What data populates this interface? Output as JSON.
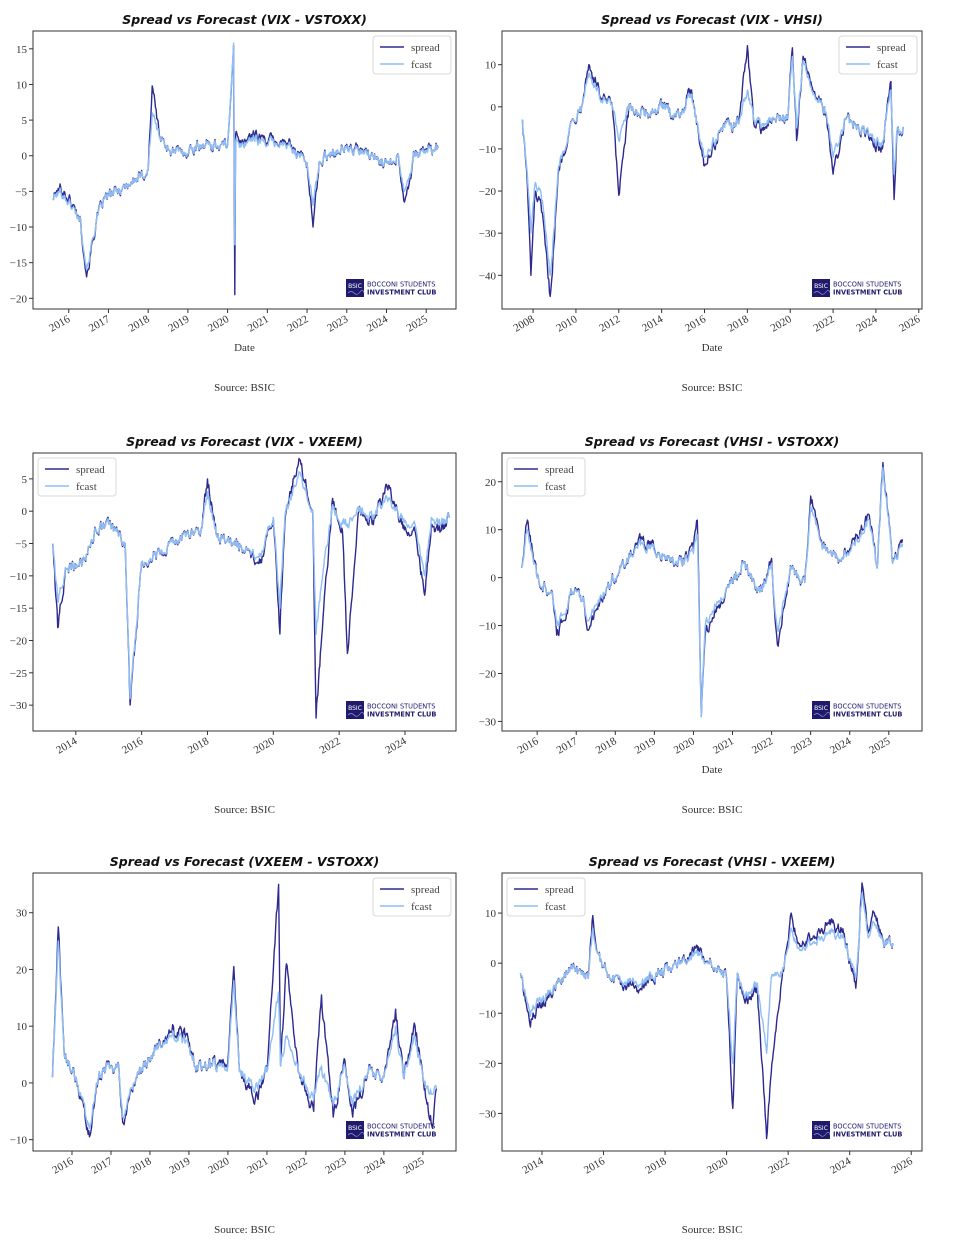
{
  "colors": {
    "spread": "#2e2a8f",
    "fcast": "#8fbef5",
    "frame": "#333333",
    "logo": "#1f1a6b"
  },
  "logo": {
    "badge": "BSIC",
    "line1": "BOCCONI STUDENTS",
    "line2": "INVESTMENT CLUB"
  },
  "chart_data": [
    {
      "type": "line",
      "title": "Spread vs Forecast (VIX - VSTOXX)",
      "xlabel": "Date",
      "ylabel": "",
      "source": "Source: BSIC",
      "legend": {
        "placement": "top-right",
        "entries": [
          "spread",
          "fcast"
        ]
      },
      "xlim": [
        2015.1,
        2025.75
      ],
      "ylim": [
        -21.5,
        17.5
      ],
      "xticks": [
        2016,
        2017,
        2018,
        2019,
        2020,
        2021,
        2022,
        2023,
        2024,
        2025
      ],
      "xtick_labels": [
        "2016",
        "2017",
        "2018",
        "2019",
        "2020",
        "2021",
        "2022",
        "2023",
        "2024",
        "2025"
      ],
      "yticks": [
        15,
        10,
        5,
        0,
        -5,
        -10,
        -15,
        -20
      ],
      "ytick_labels": [
        "15",
        "10",
        "5",
        "0",
        "−5",
        "−10",
        "−15",
        "−20"
      ],
      "x": [
        2015.6,
        2015.8,
        2016.0,
        2016.3,
        2016.45,
        2016.7,
        2016.9,
        2017.2,
        2017.5,
        2017.8,
        2018.0,
        2018.1,
        2018.3,
        2018.6,
        2018.9,
        2019.3,
        2019.6,
        2020.0,
        2020.15,
        2020.18,
        2020.2,
        2020.3,
        2020.6,
        2020.9,
        2021.2,
        2021.6,
        2022.0,
        2022.15,
        2022.3,
        2022.6,
        2022.9,
        2023.2,
        2023.6,
        2024.0,
        2024.3,
        2024.45,
        2024.7,
        2025.0,
        2025.3
      ],
      "series": [
        {
          "name": "spread",
          "values": [
            -6,
            -4.5,
            -6,
            -9,
            -17,
            -9,
            -6,
            -5,
            -4,
            -3,
            -2,
            9.8,
            2.5,
            0.5,
            0.5,
            1.5,
            1.5,
            1.5,
            15.5,
            -19.5,
            3,
            1.5,
            3,
            2.5,
            2,
            1.5,
            -1,
            -10,
            -1,
            0.5,
            1,
            1,
            0,
            -1,
            0,
            -6.5,
            0,
            1,
            1
          ]
        },
        {
          "name": "fcast",
          "values": [
            -6,
            -5,
            -6.5,
            -9,
            -16,
            -9,
            -6,
            -5,
            -4,
            -3,
            -2,
            6,
            2.5,
            0.5,
            0.5,
            1.5,
            1.5,
            1.5,
            15.8,
            -12.5,
            2,
            1.2,
            2.5,
            2,
            1.8,
            1.2,
            -1,
            -7,
            -1,
            0.5,
            1,
            0.8,
            0,
            -1,
            0,
            -5,
            0,
            0.8,
            1
          ]
        }
      ]
    },
    {
      "type": "line",
      "title": "Spread vs Forecast (VIX - VHSI)",
      "xlabel": "Date",
      "ylabel": "",
      "source": "Source: BSIC",
      "legend": {
        "placement": "top-right",
        "entries": [
          "spread",
          "fcast"
        ]
      },
      "xlim": [
        2006.55,
        2026.15
      ],
      "ylim": [
        -48,
        18
      ],
      "xticks": [
        2008,
        2010,
        2012,
        2014,
        2016,
        2018,
        2020,
        2022,
        2024,
        2026
      ],
      "xtick_labels": [
        "2008",
        "2010",
        "2012",
        "2014",
        "2016",
        "2018",
        "2020",
        "2022",
        "2024",
        "2026"
      ],
      "yticks": [
        10,
        0,
        -10,
        -20,
        -30,
        -40
      ],
      "ytick_labels": [
        "10",
        "0",
        "−10",
        "−20",
        "−30",
        "−40"
      ],
      "x": [
        2007.5,
        2007.7,
        2007.9,
        2008.1,
        2008.4,
        2008.8,
        2009.2,
        2009.7,
        2010.2,
        2010.6,
        2011.2,
        2011.7,
        2012.0,
        2012.5,
        2013.2,
        2014.0,
        2014.8,
        2015.4,
        2015.6,
        2016.0,
        2016.8,
        2017.6,
        2018.0,
        2018.3,
        2018.7,
        2019.3,
        2019.9,
        2020.1,
        2020.3,
        2020.6,
        2021.0,
        2021.6,
        2022.0,
        2022.6,
        2023.2,
        2023.8,
        2024.3,
        2024.7,
        2024.85,
        2025.0,
        2025.3
      ],
      "series": [
        {
          "name": "spread",
          "values": [
            -3,
            -15,
            -40,
            -20,
            -25,
            -45,
            -15,
            -5,
            0,
            10,
            2,
            0,
            -21,
            0,
            -2,
            0,
            -2,
            4,
            -2,
            -14,
            -5,
            -4,
            14.5,
            -4,
            -5,
            -3,
            -2,
            14,
            -8,
            12,
            5,
            0,
            -16,
            -3,
            -5,
            -8,
            -10,
            6,
            -22,
            -5,
            -5
          ]
        },
        {
          "name": "fcast",
          "values": [
            -3,
            -14,
            -30,
            -18,
            -22,
            -40,
            -14,
            -5,
            0,
            8,
            1.5,
            0,
            -8,
            0,
            -2,
            0,
            -2,
            3,
            -2,
            -12,
            -5,
            -4,
            4,
            -3,
            -4,
            -3,
            -2,
            12,
            -5,
            11,
            4,
            0,
            -12,
            -3,
            -5,
            -7,
            -9,
            4,
            -16,
            -5,
            -5
          ]
        }
      ]
    },
    {
      "type": "line",
      "title": "Spread vs Forecast (VIX - VXEEM)",
      "xlabel": "",
      "ylabel": "",
      "source": "Source: BSIC",
      "legend": {
        "placement": "top-left",
        "entries": [
          "spread",
          "fcast"
        ]
      },
      "xlim": [
        2012.7,
        2025.55
      ],
      "ylim": [
        -34,
        9
      ],
      "xticks": [
        2014,
        2016,
        2018,
        2020,
        2022,
        2024
      ],
      "xtick_labels": [
        "2014",
        "2016",
        "2018",
        "2020",
        "2022",
        "2024"
      ],
      "yticks": [
        5,
        0,
        -5,
        -10,
        -15,
        -20,
        -25,
        -30
      ],
      "ytick_labels": [
        "5",
        "0",
        "−5",
        "−10",
        "−15",
        "−20",
        "−25",
        "−30"
      ],
      "x": [
        2013.3,
        2013.45,
        2013.7,
        2014.2,
        2014.6,
        2015.0,
        2015.5,
        2015.65,
        2016.0,
        2016.6,
        2017.2,
        2017.8,
        2018.0,
        2018.3,
        2018.8,
        2019.2,
        2019.6,
        2020.0,
        2020.2,
        2020.35,
        2020.5,
        2020.8,
        2021.2,
        2021.3,
        2021.45,
        2021.8,
        2022.1,
        2022.25,
        2022.6,
        2023.0,
        2023.5,
        2023.9,
        2024.3,
        2024.6,
        2024.8,
        2025.1,
        2025.35
      ],
      "series": [
        {
          "name": "spread",
          "values": [
            -5,
            -18,
            -9,
            -8,
            -3,
            -2,
            -5,
            -30,
            -8,
            -6,
            -4,
            -3,
            5,
            -4,
            -5,
            -6,
            -8,
            -1,
            -19,
            -2,
            3,
            8,
            0,
            -32,
            -21,
            2,
            -3,
            -22,
            0,
            -2,
            4,
            -2,
            -3,
            -13,
            -2,
            -3,
            -1
          ]
        },
        {
          "name": "fcast",
          "values": [
            -5,
            -14,
            -9,
            -8,
            -3,
            -2,
            -5,
            -29,
            -8,
            -6,
            -4,
            -3,
            3,
            -4,
            -5,
            -6,
            -7,
            -1,
            -15,
            -1,
            2,
            6,
            0,
            -19,
            -12,
            1,
            -2,
            -2,
            0,
            -1,
            2,
            -1,
            -2,
            -10,
            -1,
            -2,
            -1
          ]
        }
      ]
    },
    {
      "type": "line",
      "title": "Spread vs Forecast (VHSI - VSTOXX)",
      "xlabel": "Date",
      "ylabel": "",
      "source": "Source: BSIC",
      "legend": {
        "placement": "top-left",
        "entries": [
          "spread",
          "fcast"
        ]
      },
      "xlim": [
        2015.1,
        2025.85
      ],
      "ylim": [
        -32,
        26
      ],
      "xticks": [
        2016,
        2017,
        2018,
        2019,
        2020,
        2021,
        2022,
        2023,
        2024,
        2025
      ],
      "xtick_labels": [
        "2016",
        "2017",
        "2018",
        "2019",
        "2020",
        "2021",
        "2022",
        "2023",
        "2024",
        "2025"
      ],
      "yticks": [
        20,
        10,
        0,
        -10,
        -20,
        -30
      ],
      "ytick_labels": [
        "20",
        "10",
        "0",
        "−10",
        "−20",
        "−30"
      ],
      "x": [
        2015.6,
        2015.75,
        2016.0,
        2016.4,
        2016.5,
        2016.9,
        2017.2,
        2017.3,
        2017.8,
        2018.3,
        2018.7,
        2019.2,
        2019.7,
        2020.0,
        2020.1,
        2020.2,
        2020.3,
        2020.6,
        2020.9,
        2021.3,
        2021.7,
        2022.0,
        2022.15,
        2022.5,
        2022.85,
        2023.0,
        2023.3,
        2023.8,
        2024.1,
        2024.5,
        2024.7,
        2024.85,
        2025.1,
        2025.35
      ],
      "series": [
        {
          "name": "spread",
          "values": [
            2,
            12,
            0,
            -4,
            -12,
            -3,
            -5,
            -11,
            -2,
            4,
            8,
            5,
            3,
            6,
            12,
            -29,
            -12,
            -6,
            -2,
            3,
            -3,
            4,
            -14,
            2,
            -1,
            17,
            6,
            4,
            8,
            13,
            2,
            24,
            3,
            8
          ]
        },
        {
          "name": "fcast",
          "values": [
            2,
            10,
            0,
            -4,
            -10,
            -3,
            -5,
            -9,
            -2,
            4,
            7,
            5,
            3,
            5,
            9,
            -29,
            -10,
            -5,
            -2,
            3,
            -3,
            3,
            -11,
            2,
            -1,
            15,
            6,
            4,
            7,
            12,
            2,
            23,
            3,
            7
          ]
        }
      ]
    },
    {
      "type": "line",
      "title": "Spread vs Forecast (VXEEM - VSTOXX)",
      "xlabel": "",
      "ylabel": "",
      "source": "Source: BSIC",
      "legend": {
        "placement": "top-right",
        "entries": [
          "spread",
          "fcast"
        ]
      },
      "xlim": [
        2015.0,
        2025.85
      ],
      "ylim": [
        -12,
        37
      ],
      "xticks": [
        2016,
        2017,
        2018,
        2019,
        2020,
        2021,
        2022,
        2023,
        2024,
        2025
      ],
      "xtick_labels": [
        "2016",
        "2017",
        "2018",
        "2019",
        "2020",
        "2021",
        "2022",
        "2023",
        "2024",
        "2025"
      ],
      "yticks": [
        30,
        20,
        10,
        0,
        -10
      ],
      "ytick_labels": [
        "30",
        "20",
        "10",
        "0",
        "−10"
      ],
      "x": [
        2015.5,
        2015.65,
        2015.8,
        2016.1,
        2016.45,
        2016.7,
        2017.2,
        2017.3,
        2017.7,
        2018.2,
        2018.6,
        2018.9,
        2019.2,
        2019.6,
        2020.0,
        2020.15,
        2020.3,
        2020.7,
        2021.0,
        2021.3,
        2021.35,
        2021.5,
        2021.8,
        2022.2,
        2022.4,
        2022.7,
        2023.0,
        2023.2,
        2023.6,
        2024.0,
        2024.3,
        2024.5,
        2024.8,
        2025.0,
        2025.25,
        2025.35
      ],
      "series": [
        {
          "name": "spread",
          "values": [
            1,
            27.5,
            5,
            1,
            -9.5,
            2,
            3,
            -7,
            2,
            6,
            10,
            8,
            3,
            3,
            4,
            20.5,
            2,
            -3,
            2,
            35,
            3,
            21,
            2,
            -5,
            15.5,
            -6,
            4,
            -6,
            2,
            1,
            13,
            1,
            10,
            1,
            -8,
            -1
          ]
        },
        {
          "name": "fcast",
          "values": [
            1,
            25,
            5,
            1,
            -8,
            2,
            3,
            -6,
            2,
            6,
            9,
            7,
            3,
            3,
            3,
            18,
            2,
            -1,
            2,
            16,
            3,
            8,
            2,
            -3,
            3,
            -4,
            3,
            -4,
            2,
            1,
            10,
            1,
            8,
            1,
            -2,
            -1
          ]
        }
      ]
    },
    {
      "type": "line",
      "title": "Spread vs Forecast (VHSI - VXEEM)",
      "xlabel": "",
      "ylabel": "",
      "source": "Source: BSIC",
      "legend": {
        "placement": "top-left",
        "entries": [
          "spread",
          "fcast"
        ]
      },
      "xlim": [
        2012.7,
        2026.35
      ],
      "ylim": [
        -37.5,
        18
      ],
      "xticks": [
        2014,
        2016,
        2018,
        2020,
        2022,
        2024,
        2026
      ],
      "xtick_labels": [
        "2014",
        "2016",
        "2018",
        "2020",
        "2022",
        "2024",
        "2026"
      ],
      "yticks": [
        10,
        0,
        -10,
        -20,
        -30
      ],
      "ytick_labels": [
        "10",
        "0",
        "−10",
        "−20",
        "−30"
      ],
      "x": [
        2013.3,
        2013.6,
        2014.0,
        2014.5,
        2015.0,
        2015.5,
        2015.65,
        2015.8,
        2016.2,
        2017.0,
        2017.8,
        2018.5,
        2019.0,
        2019.5,
        2020.0,
        2020.2,
        2020.35,
        2020.6,
        2021.0,
        2021.3,
        2021.45,
        2021.8,
        2022.1,
        2022.3,
        2022.8,
        2023.3,
        2023.8,
        2024.2,
        2024.4,
        2024.6,
        2024.8,
        2025.1,
        2025.4
      ],
      "series": [
        {
          "name": "spread",
          "values": [
            -2,
            -12,
            -8,
            -4,
            -1,
            -3,
            9.5,
            2,
            -3,
            -5,
            -2,
            0,
            3,
            0,
            -3,
            -29,
            -2,
            -8,
            -5,
            -35,
            -22,
            -3,
            10,
            4,
            5,
            8,
            6,
            -5,
            16,
            6,
            10,
            4,
            4
          ]
        },
        {
          "name": "fcast",
          "values": [
            -2,
            -10,
            -7,
            -4,
            -1,
            -3,
            7,
            2,
            -3,
            -4,
            -2,
            0,
            2,
            0,
            -3,
            -20,
            -2,
            -7,
            -4,
            -18,
            -3,
            -2,
            7,
            3,
            4,
            6,
            5,
            -3,
            14,
            5,
            8,
            4,
            4
          ]
        }
      ]
    }
  ]
}
